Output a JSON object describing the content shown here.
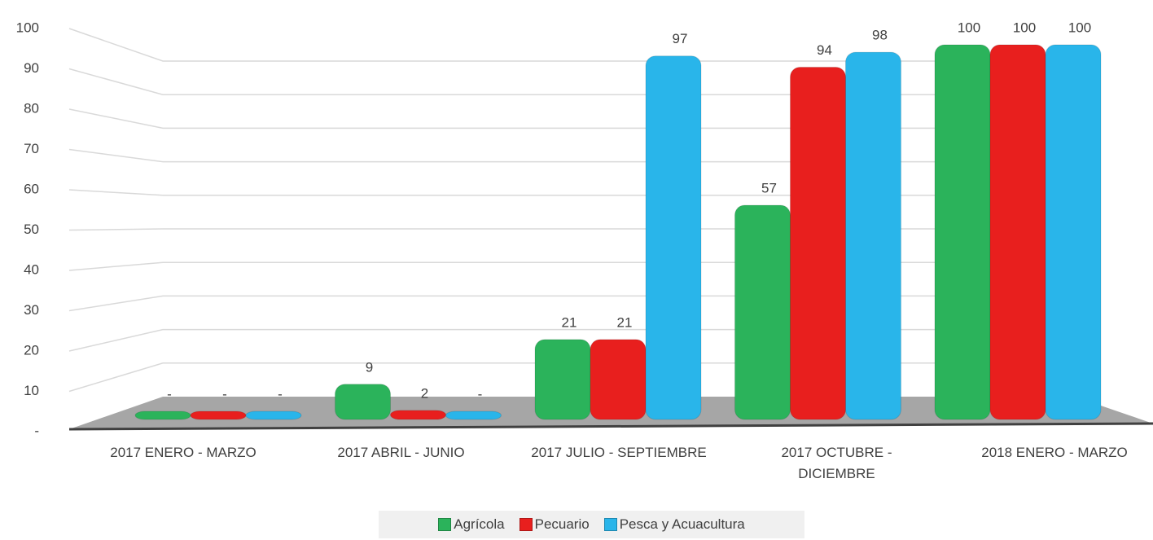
{
  "chart_data": {
    "type": "bar3d",
    "categories": [
      "2017 ENERO - MARZO",
      "2017 ABRIL - JUNIO",
      "2017 JULIO - SEPTIEMBRE",
      "2017 OCTUBRE - DICIEMBRE",
      "2018 ENERO - MARZO"
    ],
    "series": [
      {
        "name": "Agrícola",
        "color": "#2bb35b",
        "values": [
          0,
          9,
          21,
          57,
          100
        ],
        "value_labels": [
          "-",
          "9",
          "21",
          "57",
          "100"
        ]
      },
      {
        "name": "Pecuario",
        "color": "#e81f1e",
        "values": [
          0,
          2,
          21,
          94,
          100
        ],
        "value_labels": [
          "-",
          "2",
          "21",
          "94",
          "100"
        ]
      },
      {
        "name": "Pesca y Acuacultura",
        "color": "#29b5ea",
        "values": [
          0,
          0,
          97,
          98,
          100
        ],
        "value_labels": [
          "-",
          "-",
          "97",
          "98",
          "100"
        ]
      }
    ],
    "ylim": [
      0,
      100
    ],
    "yticks": [
      {
        "value": 0,
        "label": "-"
      },
      10,
      20,
      30,
      40,
      50,
      60,
      70,
      80,
      90,
      100
    ],
    "grid": true,
    "legend": "bottom"
  }
}
